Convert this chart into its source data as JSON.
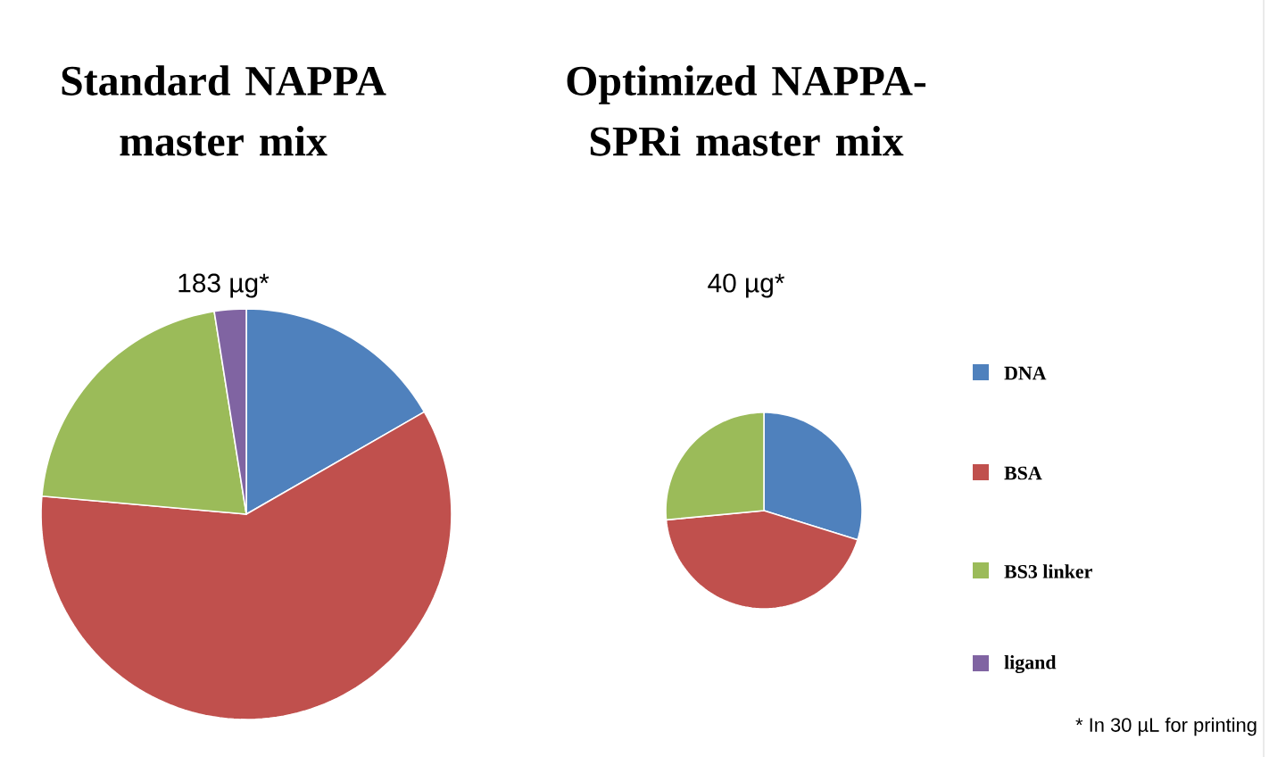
{
  "chart_data": [
    {
      "type": "pie",
      "title": "Standard NAPPA master mix",
      "subtitle": "183 µg*",
      "categories": [
        "DNA",
        "BSA",
        "BS3 linker",
        "ligand"
      ],
      "values": [
        16.7,
        59.7,
        21.1,
        2.5
      ],
      "colors": [
        "#4f81bd",
        "#c0504d",
        "#9bbb59",
        "#8064a2"
      ],
      "legend": "right"
    },
    {
      "type": "pie",
      "title": "Optimized NAPPA-SPRi master mix",
      "subtitle": "40 µg*",
      "values": [
        29.8,
        43.7,
        26.5
      ],
      "colors": [
        "#4f81bd",
        "#c0504d",
        "#9bbb59"
      ],
      "annotations": [
        "* In 30 µL for printing"
      ]
    }
  ]
}
